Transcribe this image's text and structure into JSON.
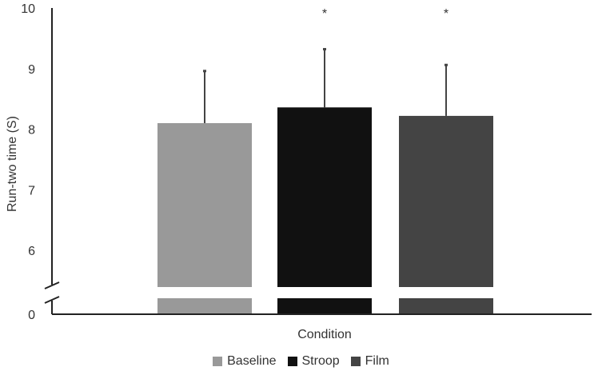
{
  "chart_data": {
    "type": "bar",
    "categories": [
      "Baseline",
      "Stroop",
      "Film"
    ],
    "series": [
      {
        "name": "Baseline",
        "value": 8.1,
        "error": 0.86,
        "color": "#999999",
        "annotation": ""
      },
      {
        "name": "Stroop",
        "value": 8.36,
        "error": 0.96,
        "color": "#111111",
        "annotation": "*"
      },
      {
        "name": "Film",
        "value": 8.22,
        "error": 0.84,
        "color": "#444444",
        "annotation": "*"
      }
    ],
    "xlabel": "Condition",
    "ylabel": "Run-two time (S)",
    "ylim": [
      5.6,
      10
    ],
    "axis_break": true,
    "y_ticks": [
      "0",
      "6",
      "7",
      "8",
      "9",
      "10"
    ],
    "y_tick_values": [
      null,
      6,
      7,
      8,
      9,
      10
    ],
    "legend_position": "bottom",
    "grid": false
  }
}
